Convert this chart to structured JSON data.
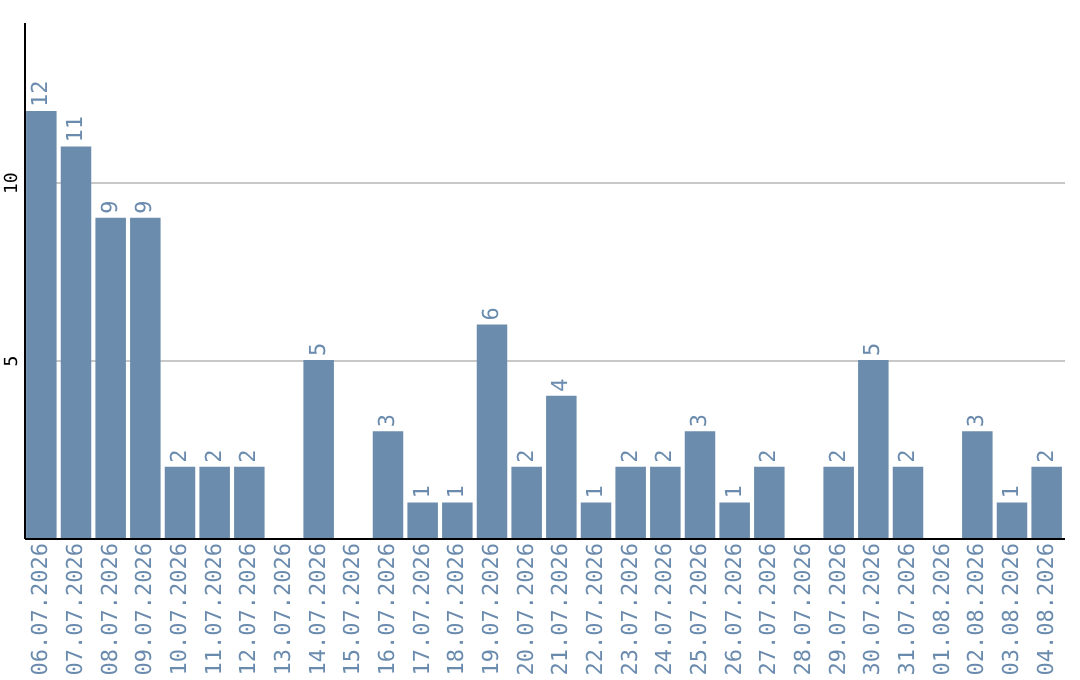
{
  "chart_data": {
    "type": "bar",
    "categories": [
      "06.07.2026",
      "07.07.2026",
      "08.07.2026",
      "09.07.2026",
      "10.07.2026",
      "11.07.2026",
      "12.07.2026",
      "13.07.2026",
      "14.07.2026",
      "15.07.2026",
      "16.07.2026",
      "17.07.2026",
      "18.07.2026",
      "19.07.2026",
      "20.07.2026",
      "21.07.2026",
      "22.07.2026",
      "23.07.2026",
      "24.07.2026",
      "25.07.2026",
      "26.07.2026",
      "27.07.2026",
      "28.07.2026",
      "29.07.2026",
      "30.07.2026",
      "31.07.2026",
      "01.08.2026",
      "02.08.2026",
      "03.08.2026",
      "04.08.2026"
    ],
    "values": [
      12,
      11,
      9,
      9,
      2,
      2,
      2,
      null,
      5,
      null,
      3,
      1,
      1,
      6,
      2,
      4,
      1,
      2,
      2,
      3,
      1,
      2,
      null,
      2,
      5,
      2,
      null,
      3,
      1,
      2
    ],
    "color": "#6b8cac",
    "ylim": [
      0,
      14.5
    ],
    "yticks": [
      {
        "value": 0,
        "label": null
      },
      5,
      10
    ],
    "grid": "y",
    "data_labels": true
  }
}
